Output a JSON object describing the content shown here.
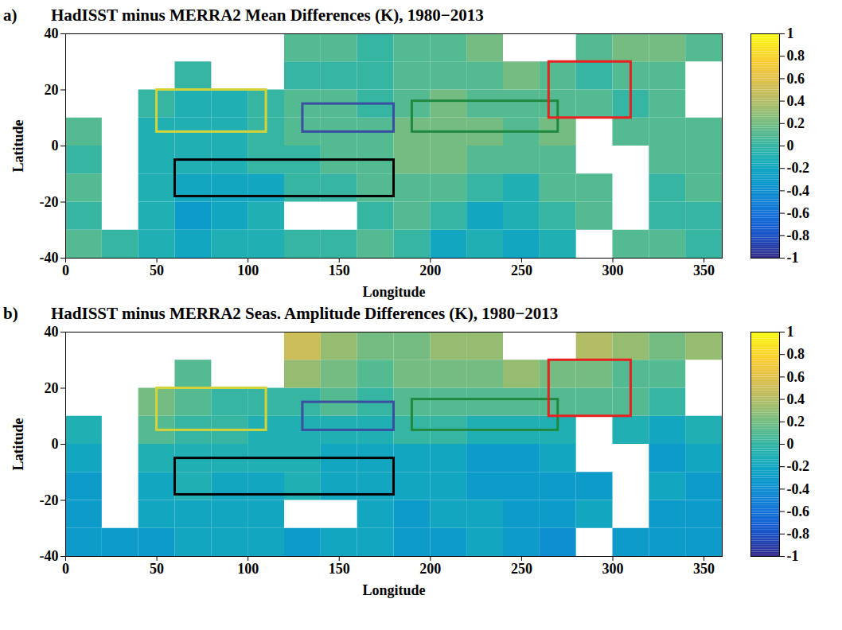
{
  "chart_data": [
    {
      "type": "heatmap",
      "panel_label": "a)",
      "title": "HadISST minus MERRA2 Mean Differences (K), 1980−2013",
      "x_label": "Longitude",
      "y_label": "Latitude",
      "xlim": [
        0,
        360
      ],
      "xticks": [
        0,
        50,
        100,
        150,
        200,
        250,
        300,
        350
      ],
      "ylim": [
        -40,
        40
      ],
      "yticks": [
        -40,
        -20,
        0,
        20,
        40
      ],
      "lon_edges": [
        0,
        20,
        40,
        60,
        80,
        100,
        120,
        140,
        160,
        180,
        200,
        220,
        240,
        260,
        280,
        300,
        320,
        340,
        360
      ],
      "lat_edges": [
        -40,
        -30,
        -20,
        -10,
        0,
        10,
        20,
        30,
        40
      ],
      "values": [
        [
          0.1,
          0.0,
          -0.1,
          -0.2,
          -0.1,
          -0.1,
          0.0,
          0.0,
          0.1,
          0.0,
          -0.2,
          -0.1,
          -0.2,
          -0.1,
          null,
          0.1,
          0.1,
          0.0
        ],
        [
          0.0,
          null,
          -0.1,
          -0.3,
          -0.2,
          -0.1,
          null,
          null,
          0.0,
          0.1,
          0.0,
          -0.2,
          -0.1,
          0.0,
          0.1,
          null,
          0.0,
          0.0
        ],
        [
          0.1,
          null,
          -0.1,
          -0.2,
          -0.2,
          -0.2,
          0.0,
          0.0,
          0.1,
          0.1,
          0.1,
          0.0,
          -0.1,
          0.1,
          0.1,
          null,
          0.0,
          0.1
        ],
        [
          0.0,
          null,
          -0.1,
          -0.1,
          -0.1,
          0.0,
          0.0,
          0.1,
          0.1,
          0.2,
          0.2,
          0.1,
          0.1,
          0.1,
          null,
          null,
          0.1,
          0.1
        ],
        [
          0.1,
          null,
          -0.1,
          -0.1,
          -0.1,
          0.0,
          0.1,
          0.1,
          0.1,
          0.2,
          0.2,
          0.2,
          0.1,
          0.2,
          null,
          0.1,
          0.1,
          0.1
        ],
        [
          null,
          null,
          0.0,
          -0.1,
          -0.1,
          0.0,
          0.1,
          0.1,
          0.0,
          0.1,
          0.2,
          0.1,
          0.1,
          0.1,
          0.1,
          0.0,
          0.1,
          null
        ],
        [
          null,
          null,
          null,
          0.0,
          null,
          null,
          0.0,
          0.0,
          0.0,
          0.1,
          0.1,
          0.1,
          0.2,
          0.1,
          0.0,
          0.1,
          0.1,
          null
        ],
        [
          null,
          null,
          null,
          null,
          null,
          null,
          0.1,
          0.1,
          0.0,
          0.1,
          0.1,
          0.2,
          null,
          null,
          0.1,
          0.2,
          0.2,
          0.1
        ]
      ],
      "colorbar": {
        "range": [
          -1,
          1
        ],
        "ticks": [
          -1,
          -0.8,
          -0.6,
          -0.4,
          -0.2,
          0,
          0.2,
          0.4,
          0.6,
          0.8,
          1
        ]
      },
      "boxes": [
        {
          "color": "#d4d43a",
          "lon": [
            50,
            110
          ],
          "lat": [
            5,
            20
          ]
        },
        {
          "color": "#3a4fa0",
          "lon": [
            130,
            180
          ],
          "lat": [
            5,
            15
          ]
        },
        {
          "color": "#1f8a3f",
          "lon": [
            190,
            270
          ],
          "lat": [
            5,
            16
          ]
        },
        {
          "color": "#e8201f",
          "lon": [
            265,
            310
          ],
          "lat": [
            10,
            30
          ]
        },
        {
          "color": "#000000",
          "lon": [
            60,
            180
          ],
          "lat": [
            -18,
            -5
          ]
        }
      ]
    },
    {
      "type": "heatmap",
      "panel_label": "b)",
      "title": "HadISST minus MERRA2 Seas. Amplitude Differences (K), 1980−2013",
      "x_label": "Longitude",
      "y_label": "Latitude",
      "xlim": [
        0,
        360
      ],
      "xticks": [
        0,
        50,
        100,
        150,
        200,
        250,
        300,
        350
      ],
      "ylim": [
        -40,
        40
      ],
      "yticks": [
        -40,
        -20,
        0,
        20,
        40
      ],
      "lon_edges": [
        0,
        20,
        40,
        60,
        80,
        100,
        120,
        140,
        160,
        180,
        200,
        220,
        240,
        260,
        280,
        300,
        320,
        340,
        360
      ],
      "lat_edges": [
        -40,
        -30,
        -20,
        -10,
        0,
        10,
        20,
        30,
        40
      ],
      "values": [
        [
          -0.3,
          -0.3,
          -0.3,
          -0.2,
          -0.2,
          -0.2,
          -0.3,
          -0.2,
          -0.2,
          -0.3,
          -0.3,
          -0.2,
          -0.3,
          -0.4,
          null,
          -0.3,
          -0.3,
          -0.3
        ],
        [
          -0.3,
          null,
          -0.2,
          -0.2,
          -0.2,
          -0.2,
          null,
          null,
          -0.2,
          -0.3,
          -0.2,
          -0.2,
          -0.3,
          -0.3,
          -0.2,
          null,
          -0.3,
          -0.3
        ],
        [
          -0.3,
          null,
          -0.2,
          -0.1,
          -0.2,
          -0.2,
          -0.1,
          -0.2,
          -0.2,
          -0.2,
          -0.2,
          -0.3,
          -0.3,
          -0.3,
          -0.3,
          null,
          -0.2,
          -0.3
        ],
        [
          -0.2,
          null,
          -0.1,
          -0.1,
          -0.1,
          -0.1,
          -0.1,
          -0.2,
          -0.2,
          -0.2,
          -0.2,
          -0.3,
          -0.3,
          -0.2,
          null,
          null,
          -0.3,
          -0.2
        ],
        [
          -0.1,
          null,
          0.1,
          0.0,
          0.0,
          -0.1,
          -0.1,
          -0.1,
          -0.1,
          0.0,
          0.0,
          -0.1,
          -0.1,
          -0.1,
          null,
          -0.1,
          -0.2,
          -0.1
        ],
        [
          null,
          null,
          0.2,
          0.1,
          0.0,
          0.0,
          0.0,
          0.1,
          0.0,
          0.1,
          0.1,
          0.1,
          0.1,
          0.1,
          0.1,
          0.1,
          0.0,
          null
        ],
        [
          null,
          null,
          null,
          0.1,
          null,
          null,
          0.3,
          0.2,
          0.1,
          0.2,
          0.2,
          0.2,
          0.3,
          0.2,
          0.2,
          0.1,
          0.1,
          null
        ],
        [
          null,
          null,
          null,
          null,
          null,
          null,
          0.5,
          0.3,
          0.2,
          0.2,
          0.3,
          0.3,
          null,
          null,
          0.4,
          0.3,
          0.2,
          0.3
        ]
      ],
      "colorbar": {
        "range": [
          -1,
          1
        ],
        "ticks": [
          -1,
          -0.8,
          -0.6,
          -0.4,
          -0.2,
          0,
          0.2,
          0.4,
          0.6,
          0.8,
          1
        ]
      },
      "boxes": [
        {
          "color": "#d4d43a",
          "lon": [
            50,
            110
          ],
          "lat": [
            5,
            20
          ]
        },
        {
          "color": "#3a4fa0",
          "lon": [
            130,
            180
          ],
          "lat": [
            5,
            15
          ]
        },
        {
          "color": "#1f8a3f",
          "lon": [
            190,
            270
          ],
          "lat": [
            5,
            16
          ]
        },
        {
          "color": "#e8201f",
          "lon": [
            265,
            310
          ],
          "lat": [
            10,
            30
          ]
        },
        {
          "color": "#000000",
          "lon": [
            60,
            180
          ],
          "lat": [
            -18,
            -5
          ]
        }
      ]
    }
  ]
}
